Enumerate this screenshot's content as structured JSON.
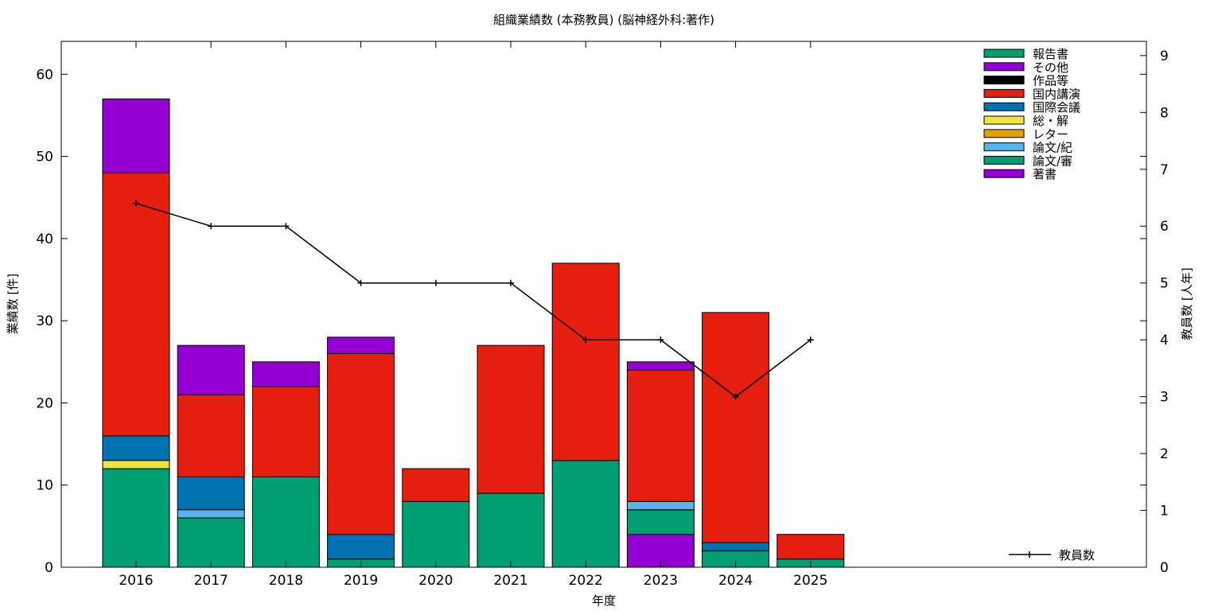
{
  "chart_data": {
    "type": "bar",
    "stacked": true,
    "title": "組織業績数 (本務教員) (脳神経外科:著作)",
    "xlabel": "年度",
    "ylabel": "業績数 [件]",
    "y2label": "教員数 [人年]",
    "categories": [
      "2016",
      "2017",
      "2018",
      "2019",
      "2020",
      "2021",
      "2022",
      "2023",
      "2024",
      "2025"
    ],
    "ylim": [
      0,
      64
    ],
    "y2lim": [
      0,
      9.25
    ],
    "yticks": [
      "0",
      "10",
      "20",
      "30",
      "40",
      "50",
      "60"
    ],
    "y2ticks": [
      "0",
      "1",
      "2",
      "3",
      "4",
      "5",
      "6",
      "7",
      "8",
      "9"
    ],
    "grid": false,
    "legend_position": "top-right",
    "series": [
      {
        "name": "著書",
        "color": "#9400d3",
        "values": [
          0,
          0,
          0,
          0,
          0,
          0,
          0,
          4,
          0,
          0
        ]
      },
      {
        "name": "論文/審",
        "color": "#009e73",
        "values": [
          12,
          6,
          11,
          1,
          8,
          9,
          13,
          3,
          2,
          1
        ]
      },
      {
        "name": "論文/紀",
        "color": "#56b4e9",
        "values": [
          0,
          1,
          0,
          0,
          0,
          0,
          0,
          1,
          0,
          0
        ]
      },
      {
        "name": "レター",
        "color": "#e69f00",
        "values": [
          0,
          0,
          0,
          0,
          0,
          0,
          0,
          0,
          0,
          0
        ]
      },
      {
        "name": "総・解",
        "color": "#f0e442",
        "values": [
          1,
          0,
          0,
          0,
          0,
          0,
          0,
          0,
          0,
          0
        ]
      },
      {
        "name": "国際会議",
        "color": "#0072b2",
        "values": [
          3,
          4,
          0,
          3,
          0,
          0,
          0,
          0,
          1,
          0
        ]
      },
      {
        "name": "国内講演",
        "color": "#e51e10",
        "values": [
          32,
          10,
          11,
          22,
          4,
          18,
          24,
          16,
          28,
          3
        ]
      },
      {
        "name": "作品等",
        "color": "#000000",
        "values": [
          0,
          0,
          0,
          0,
          0,
          0,
          0,
          0,
          0,
          0
        ]
      },
      {
        "name": "その他",
        "color": "#9400d3",
        "values": [
          9,
          6,
          3,
          2,
          0,
          0,
          0,
          1,
          0,
          0
        ]
      },
      {
        "name": "報告書",
        "color": "#009e73",
        "values": [
          0,
          0,
          0,
          0,
          0,
          0,
          0,
          0,
          0,
          0
        ]
      }
    ],
    "line_series": {
      "name": "教員数",
      "color": "#000000",
      "axis": "y2",
      "values": [
        6.4,
        6.0,
        6.0,
        5.0,
        5.0,
        5.0,
        4.0,
        4.0,
        3.0,
        4.0
      ]
    }
  }
}
